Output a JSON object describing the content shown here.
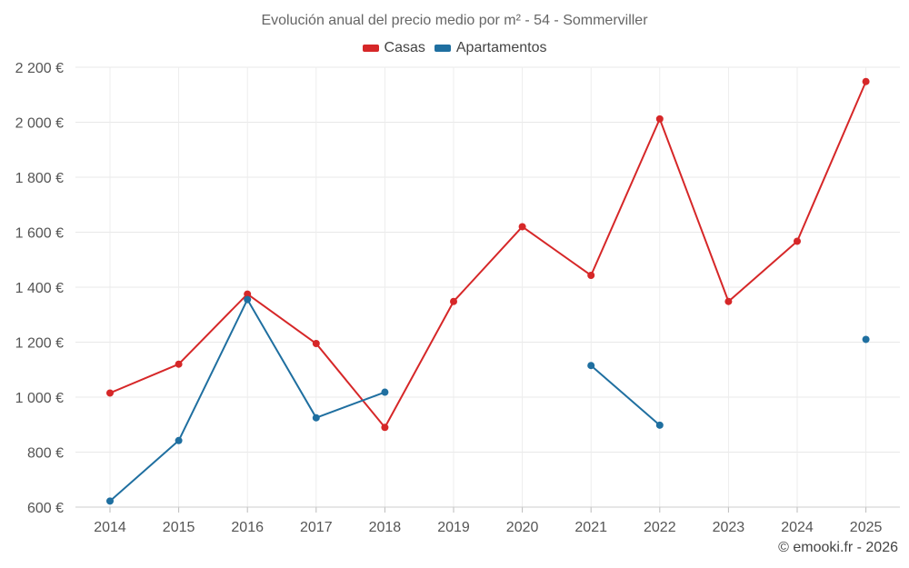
{
  "chart_data": {
    "type": "line",
    "title": "Evolución anual del precio medio por m² - 54 - Sommerviller",
    "categories": [
      "2014",
      "2015",
      "2016",
      "2017",
      "2018",
      "2019",
      "2020",
      "2021",
      "2022",
      "2023",
      "2024",
      "2025"
    ],
    "series": [
      {
        "name": "Casas",
        "color": "#d62728",
        "values": [
          1015,
          1120,
          1375,
          1195,
          890,
          1348,
          1620,
          1443,
          2012,
          1348,
          1567,
          2148
        ]
      },
      {
        "name": "Apartamentos",
        "color": "#1f6fa0",
        "values": [
          622,
          842,
          1355,
          925,
          1018,
          null,
          null,
          1115,
          898,
          null,
          null,
          1210
        ]
      }
    ],
    "y_ticks": [
      600,
      800,
      1000,
      1200,
      1400,
      1600,
      1800,
      2000,
      2200
    ],
    "y_tick_labels": [
      "600 €",
      "800 €",
      "1 000 €",
      "1 200 €",
      "1 400 €",
      "1 600 €",
      "1 800 €",
      "2 000 €",
      "2 200 €"
    ],
    "ylim": [
      600,
      2200
    ],
    "grid": true,
    "legend_position": "top-center",
    "xlabel": "",
    "ylabel": ""
  },
  "credit": "© emooki.fr - 2026"
}
